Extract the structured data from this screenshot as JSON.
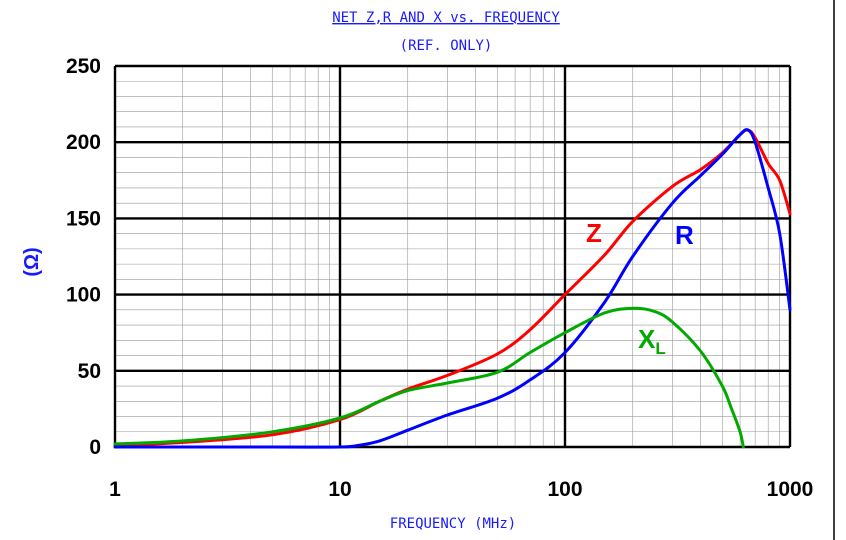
{
  "chart_data": {
    "type": "line",
    "title": "NET Z,R AND X vs. FREQUENCY",
    "subtitle": "(REF. ONLY)",
    "xlabel": "FREQUENCY (MHz)",
    "ylabel": "(Ω)",
    "xscale": "log",
    "xlim": [
      1,
      1000
    ],
    "ylim": [
      0,
      250
    ],
    "grid": true,
    "x_ticks": [
      "1",
      "10",
      "100",
      "1000"
    ],
    "y_ticks": [
      "0",
      "50",
      "100",
      "150",
      "200",
      "250"
    ],
    "series": [
      {
        "name": "Z",
        "color": "#ff0000",
        "x": [
          1,
          2,
          5,
          10,
          15,
          20,
          30,
          50,
          70,
          100,
          150,
          200,
          300,
          400,
          500,
          600,
          650,
          700,
          800,
          900,
          1000
        ],
        "y": [
          1,
          3,
          8,
          18,
          30,
          38,
          47,
          61,
          77,
          100,
          126,
          148,
          171,
          182,
          193,
          205,
          208,
          203,
          186,
          175,
          153
        ]
      },
      {
        "name": "R",
        "color": "#0000ff",
        "x": [
          1,
          5,
          10,
          12,
          15,
          20,
          30,
          50,
          70,
          100,
          150,
          200,
          300,
          400,
          500,
          600,
          650,
          700,
          800,
          900,
          1000
        ],
        "y": [
          0,
          0,
          0,
          1,
          4,
          11,
          21,
          32,
          44,
          62,
          95,
          125,
          160,
          178,
          192,
          205,
          208,
          200,
          170,
          140,
          90
        ]
      },
      {
        "name": "X_L",
        "color": "#00aa00",
        "x": [
          1,
          2,
          5,
          10,
          15,
          20,
          30,
          50,
          70,
          100,
          150,
          200,
          250,
          300,
          400,
          500,
          550,
          600,
          620
        ],
        "y": [
          2,
          4,
          10,
          19,
          30,
          37,
          42,
          49,
          62,
          75,
          88,
          91,
          89,
          82,
          63,
          40,
          25,
          10,
          0
        ]
      }
    ],
    "labels": {
      "z": "Z",
      "r": "R",
      "x_main": "X",
      "x_sub": "L"
    }
  }
}
